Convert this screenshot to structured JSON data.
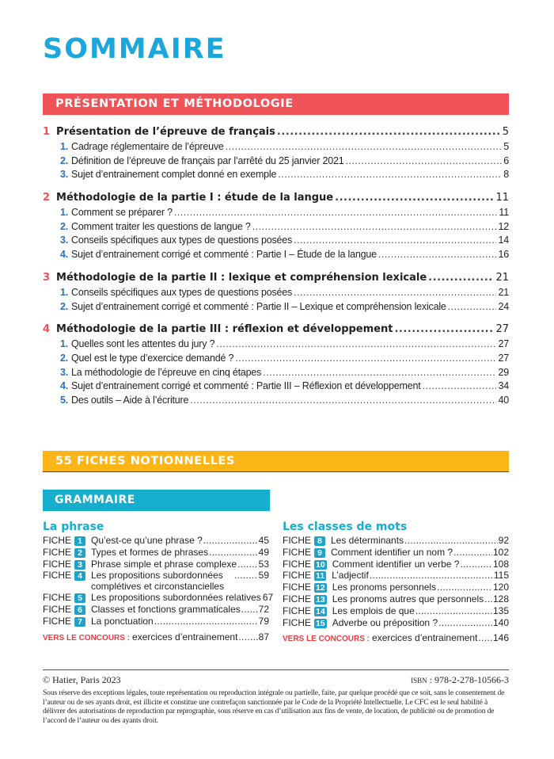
{
  "title": "SOMMAIRE",
  "section1": {
    "title": "PRÉSENTATION ET MÉTHODOLOGIE",
    "chapters": [
      {
        "num": "1",
        "label": "Présentation de l’épreuve de français",
        "page": "5",
        "subs": [
          {
            "num": "1.",
            "label": "Cadrage réglementaire de l’épreuve",
            "page": "5"
          },
          {
            "num": "2.",
            "label": "Définition de l’épreuve de français par l’arrêté du 25 janvier 2021",
            "page": "6"
          },
          {
            "num": "3.",
            "label": "Sujet d’entrainement complet donné en exemple",
            "page": "8"
          }
        ]
      },
      {
        "num": "2",
        "label": "Méthodologie de la partie I : étude de la langue",
        "page": "11",
        "subs": [
          {
            "num": "1.",
            "label": "Comment se préparer ?",
            "page": "11"
          },
          {
            "num": "2.",
            "label": "Comment traiter les questions de langue ?",
            "page": "12"
          },
          {
            "num": "3.",
            "label": "Conseils spécifiques aux types de questions posées",
            "page": "14"
          },
          {
            "num": "4.",
            "label": "Sujet d’entrainement corrigé et commenté : Partie I – Étude de la langue",
            "page": "16"
          }
        ]
      },
      {
        "num": "3",
        "label": "Méthodologie de la partie II : lexique et compréhension lexicale",
        "page": "21",
        "subs": [
          {
            "num": "1.",
            "label": "Conseils spécifiques aux types de questions posées",
            "page": "21"
          },
          {
            "num": "2.",
            "label": "Sujet d’entrainement corrigé et commenté : Partie II – Lexique et compréhension lexicale",
            "page": "24"
          }
        ]
      },
      {
        "num": "4",
        "label": "Méthodologie de la partie III : réflexion et développement",
        "page": "27",
        "subs": [
          {
            "num": "1.",
            "label": "Quelles sont les attentes du jury ?",
            "page": "27"
          },
          {
            "num": "2.",
            "label": "Quel est le type d’exercice demandé ?",
            "page": "27"
          },
          {
            "num": "3.",
            "label": "La méthodologie de l’épreuve en cinq étapes",
            "page": "29"
          },
          {
            "num": "4.",
            "label": "Sujet d’entrainement corrigé et commenté : Partie III – Réflexion et développement",
            "page": "34"
          },
          {
            "num": "5.",
            "label": "Des outils – Aide à l’écriture",
            "page": "40"
          }
        ]
      }
    ]
  },
  "section2": {
    "title": "55 FICHES NOTIONNELLES",
    "subsection": "GRAMMAIRE",
    "fiche_label": "FICHE",
    "vers_label": "VERS LE CONCOURS :",
    "columns": [
      {
        "title": "La phrase",
        "items": [
          {
            "n": "1",
            "label": "Qu’est-ce qu’une phrase ?",
            "page": "45"
          },
          {
            "n": "2",
            "label": "Types et formes de phrases",
            "page": "49"
          },
          {
            "n": "3",
            "label": "Phrase simple et phrase complexe",
            "page": "53"
          },
          {
            "n": "4",
            "label": "Les propositions subordonnées complétives et circonstancielles",
            "page": "59"
          },
          {
            "n": "5",
            "label": "Les propositions subordonnées relatives",
            "page": "67"
          },
          {
            "n": "6",
            "label": "Classes et fonctions grammaticales",
            "page": "72"
          },
          {
            "n": "7",
            "label": "La ponctuation",
            "page": "79"
          }
        ],
        "vers": {
          "label": "exercices d’entrainement",
          "page": "87"
        }
      },
      {
        "title": "Les classes de mots",
        "items": [
          {
            "n": "8",
            "label": "Les déterminants",
            "page": "92"
          },
          {
            "n": "9",
            "label": "Comment identifier un nom ?",
            "page": "102"
          },
          {
            "n": "10",
            "label": "Comment identifier un verbe ?",
            "page": "108"
          },
          {
            "n": "11",
            "label": "L’adjectif",
            "page": "115"
          },
          {
            "n": "12",
            "label": "Les pronoms personnels",
            "page": "120"
          },
          {
            "n": "13",
            "label": "Les pronoms autres que personnels",
            "page": "128"
          },
          {
            "n": "14",
            "label": "Les emplois de que",
            "page": "135"
          },
          {
            "n": "15",
            "label": "Adverbe ou préposition ?",
            "page": "140"
          }
        ],
        "vers": {
          "label": "exercices d’entrainement",
          "page": "146"
        }
      }
    ]
  },
  "footer": {
    "copyright": "© Hatier, Paris 2023",
    "isbn_label": "ISBN",
    "isbn": ": 978-2-278-10566-3",
    "legal": "Sous réserve des exceptions légales, toute représentation ou reproduction intégrale ou partielle, faite, par quelque procédé que ce soit, sans le consentement de l’auteur ou de ses ayants droit, est illicite et constitue une contrefaçon sanctionnée par le Code de la Propriété Intellectuelle. Le CFC est le seul habilité à délivrer des autorisations de reproduction par reprographie, sous réserve en cas d’utilisation aux fins de vente, de location, de publicité ou de promotion de l’accord de l’auteur ou des ayants droit."
  },
  "colors": {
    "title": "#1ba6dc",
    "red": "#ef5257",
    "yellow": "#fbb516",
    "teal": "#15aece",
    "subnum": "#2a6fb8"
  }
}
